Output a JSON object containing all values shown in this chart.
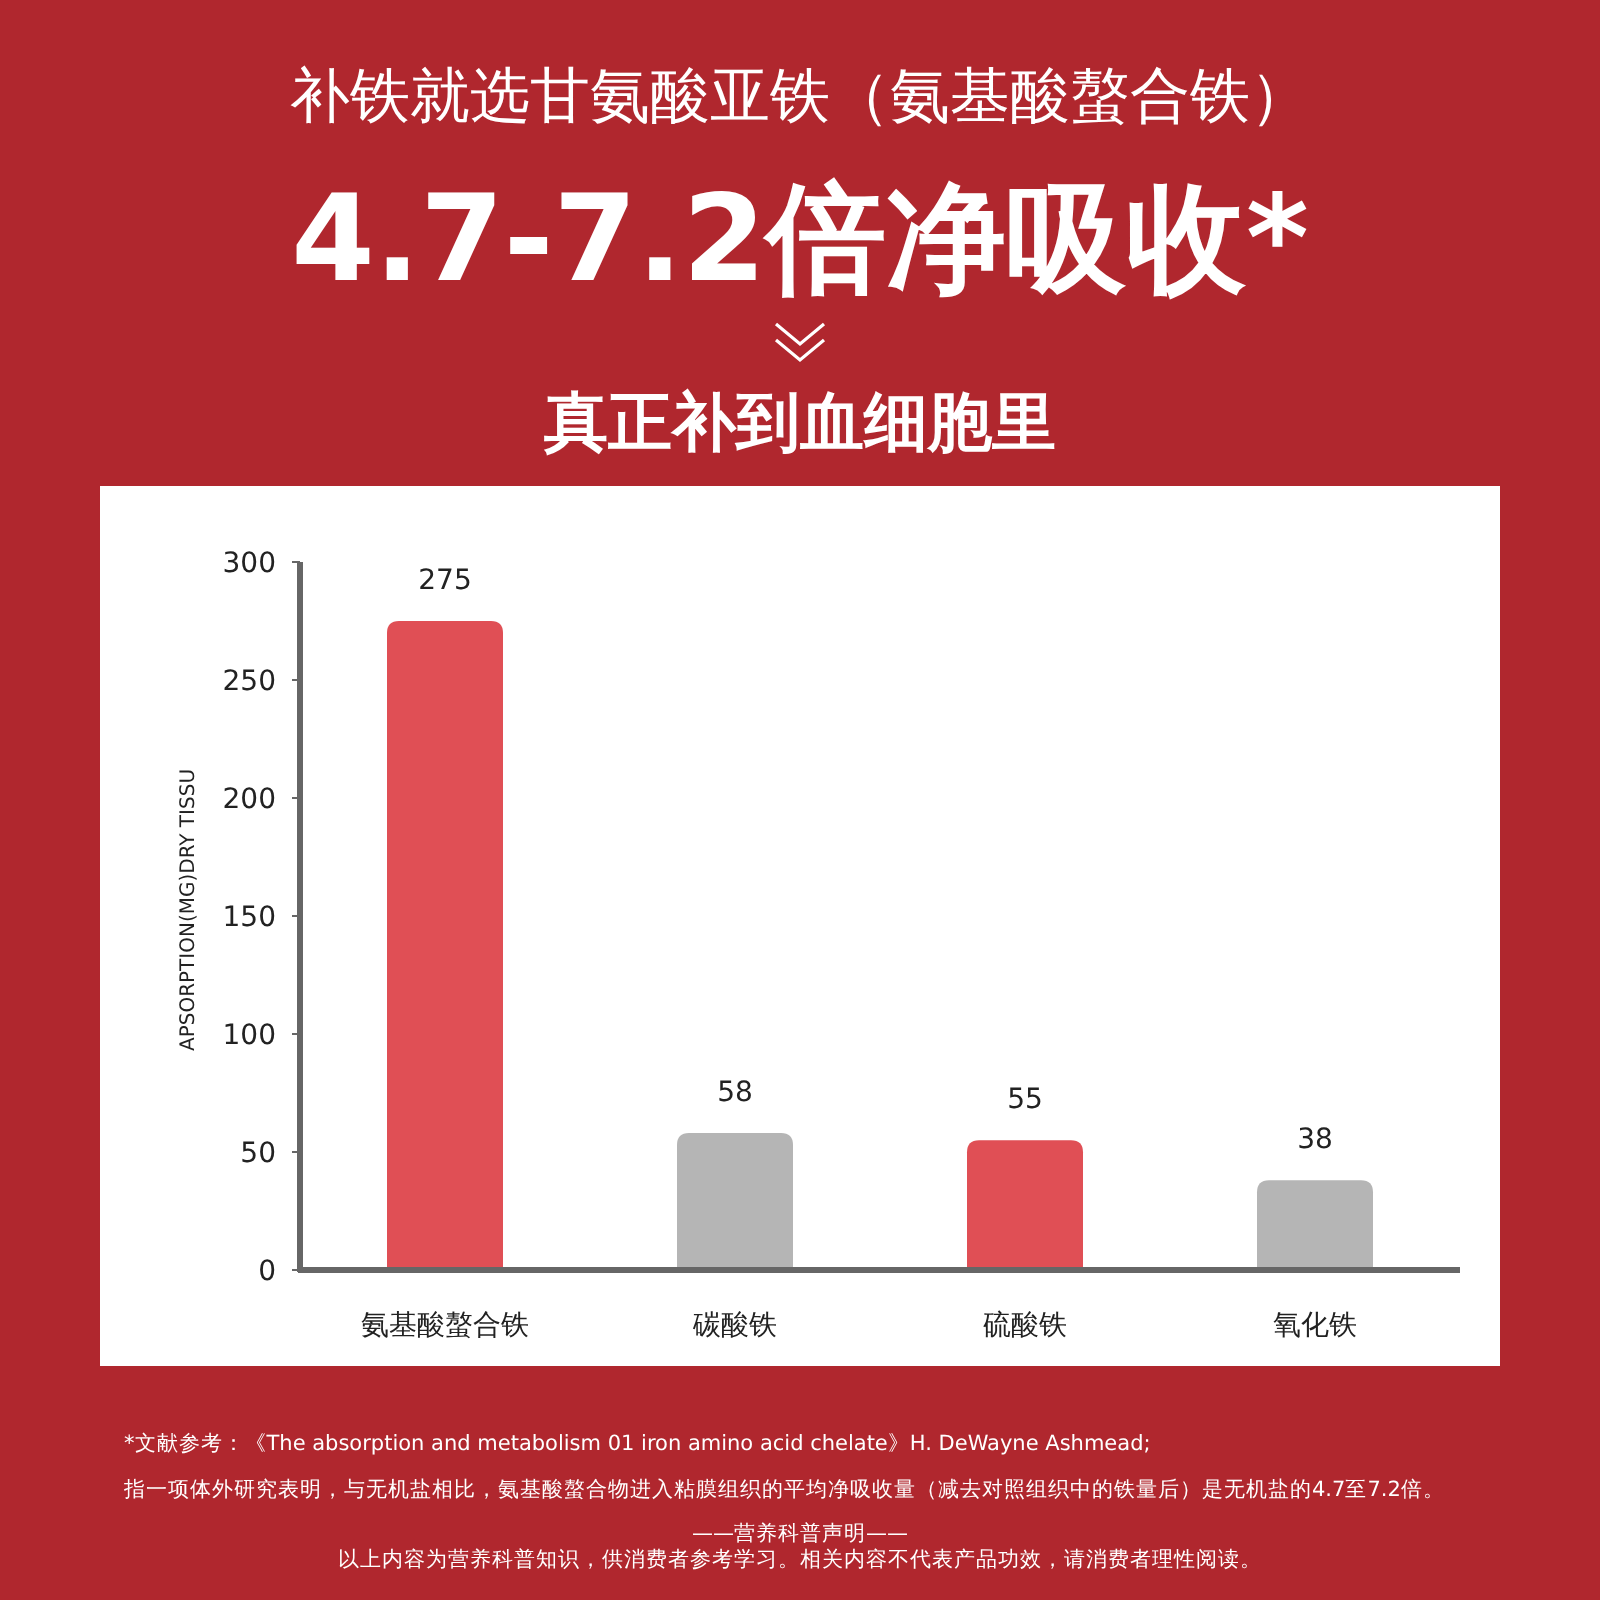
{
  "chart_data": {
    "type": "bar",
    "title": "补铁就选甘氨酸亚铁（氨基酸螯合铁）",
    "subtitle": "4.7-7.2倍净吸收*",
    "ylabel": "APSORPTION(MG)DRY TISSU",
    "categories": [
      "氨基酸螯合铁",
      "碳酸铁",
      "硫酸铁",
      "氧化铁"
    ],
    "values": [
      275,
      58,
      55,
      38
    ],
    "colors": [
      "#e04f55",
      "#b5b5b5",
      "#e04f55",
      "#b5b5b5"
    ],
    "ylim": [
      0,
      300
    ],
    "yticks": [
      0,
      50,
      100,
      150,
      200,
      250,
      300
    ],
    "data_labels": true,
    "annotations": [
      "真正补到血细胞里",
      "*文献参考：《The absorption and metabolism 01 iron amino acid chelate》H. DeWayne Ashmead;",
      "指一项体外研究表明，与无机盐相比，氨基酸螯合物进入粘膜组织的平均净吸收量（减去对照组织中的铁量后）是无机盐的4.7至7.2倍。",
      "——营养科普声明——",
      "以上内容为营养科普知识，供消费者参考学习。相关内容不代表产品功效，请消费者理性阅读。"
    ]
  }
}
